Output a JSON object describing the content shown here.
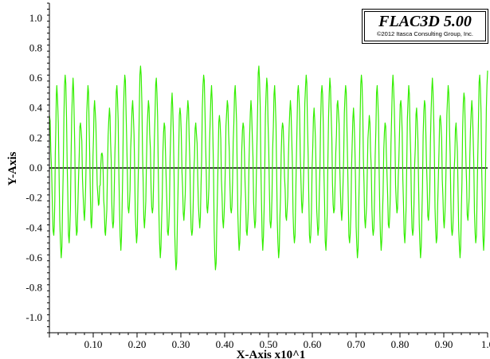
{
  "brand": {
    "title": "FLAC3D 5.00",
    "copyright": "©2012 Itasca Consulting Group, Inc."
  },
  "chart_data": {
    "type": "line",
    "title": "",
    "xlabel": "X-Axis x10^1",
    "ylabel": "Y-Axis",
    "xlim": [
      0.0,
      1.0
    ],
    "ylim": [
      -1.1,
      1.1
    ],
    "x_ticks": [
      "0.10",
      "0.20",
      "0.30",
      "0.40",
      "0.50",
      "0.60",
      "0.70",
      "0.80",
      "0.90",
      "1.0"
    ],
    "y_ticks": [
      "1.0",
      "0.8",
      "0.6",
      "0.4",
      "0.2",
      "0.0",
      "-0.2",
      "-0.4",
      "-0.6",
      "-0.8",
      "-1.0"
    ],
    "grid": false,
    "zero_line": true,
    "series": [
      {
        "color": "#33ee00",
        "x": [
          0.0,
          0.01,
          0.017,
          0.027,
          0.036,
          0.045,
          0.054,
          0.062,
          0.071,
          0.08,
          0.088,
          0.096,
          0.103,
          0.112,
          0.12,
          0.128,
          0.137,
          0.145,
          0.154,
          0.163,
          0.172,
          0.181,
          0.19,
          0.199,
          0.208,
          0.217,
          0.226,
          0.235,
          0.244,
          0.253,
          0.262,
          0.271,
          0.28,
          0.289,
          0.298,
          0.307,
          0.316,
          0.325,
          0.334,
          0.343,
          0.352,
          0.361,
          0.37,
          0.379,
          0.388,
          0.397,
          0.406,
          0.415,
          0.424,
          0.433,
          0.442,
          0.451,
          0.46,
          0.469,
          0.478,
          0.487,
          0.496,
          0.505,
          0.514,
          0.523,
          0.532,
          0.541,
          0.55,
          0.559,
          0.568,
          0.577,
          0.586,
          0.595,
          0.604,
          0.613,
          0.622,
          0.631,
          0.64,
          0.649,
          0.658,
          0.667,
          0.676,
          0.685,
          0.694,
          0.703,
          0.712,
          0.721,
          0.73,
          0.739,
          0.748,
          0.757,
          0.766,
          0.775,
          0.784,
          0.793,
          0.802,
          0.811,
          0.82,
          0.829,
          0.838,
          0.847,
          0.856,
          0.865,
          0.874,
          0.883,
          0.892,
          0.901,
          0.91,
          0.919,
          0.928,
          0.937,
          0.946,
          0.955,
          0.964,
          0.973,
          0.982,
          0.991,
          1.0
        ],
        "y": [
          0.35,
          -0.45,
          0.55,
          -0.6,
          0.62,
          -0.5,
          0.6,
          -0.45,
          0.3,
          -0.35,
          0.55,
          -0.4,
          0.45,
          -0.25,
          0.1,
          -0.45,
          0.4,
          -0.4,
          0.55,
          -0.55,
          0.62,
          -0.3,
          0.45,
          -0.5,
          0.68,
          -0.4,
          0.45,
          -0.3,
          0.6,
          -0.6,
          0.3,
          -0.45,
          0.5,
          -0.68,
          0.4,
          -0.35,
          0.45,
          -0.45,
          0.3,
          -0.4,
          0.62,
          -0.3,
          0.55,
          -0.68,
          0.35,
          -0.4,
          0.45,
          -0.3,
          0.55,
          -0.55,
          0.3,
          -0.45,
          0.45,
          -0.4,
          0.68,
          -0.55,
          0.6,
          -0.4,
          0.55,
          -0.6,
          0.3,
          -0.35,
          0.45,
          -0.5,
          0.55,
          -0.3,
          0.62,
          -0.5,
          0.4,
          -0.45,
          0.55,
          -0.55,
          0.6,
          -0.3,
          0.45,
          -0.35,
          0.55,
          -0.5,
          0.4,
          -0.6,
          0.62,
          -0.4,
          0.35,
          -0.45,
          0.55,
          -0.55,
          0.3,
          -0.4,
          0.62,
          -0.3,
          0.45,
          -0.5,
          0.55,
          -0.45,
          0.4,
          -0.6,
          0.45,
          -0.35,
          0.6,
          -0.5,
          0.35,
          -0.4,
          0.55,
          -0.45,
          0.3,
          -0.6,
          0.5,
          -0.35,
          0.45,
          -0.5,
          0.62,
          -0.55,
          0.65
        ]
      }
    ]
  }
}
